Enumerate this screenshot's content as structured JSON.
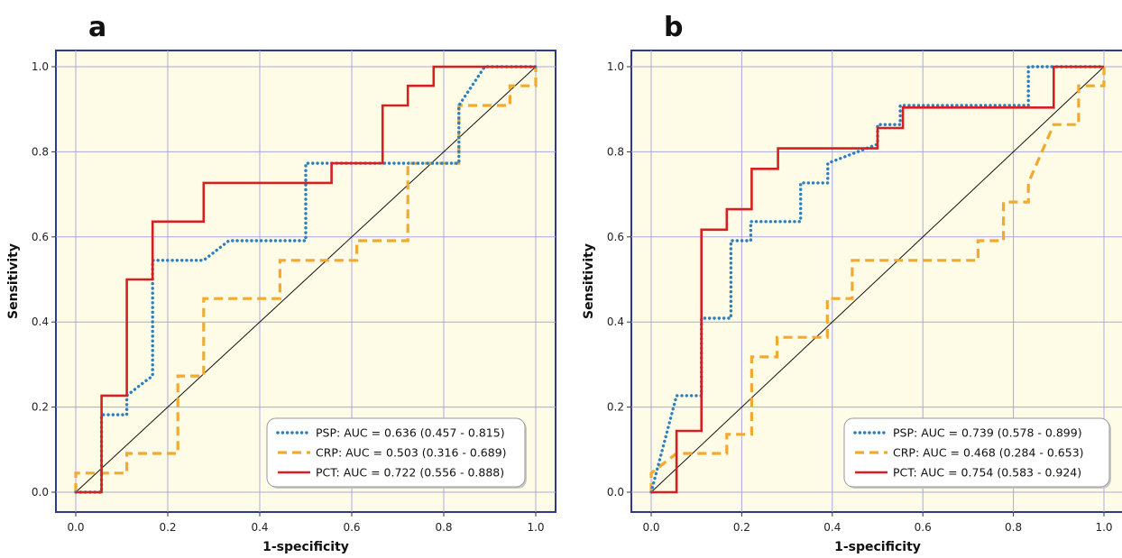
{
  "chart_data": [
    {
      "type": "line",
      "panel_label": "a",
      "xlabel": "1-specificity",
      "ylabel": "Sensitivity",
      "xlim": [
        0,
        1
      ],
      "ylim": [
        0,
        1
      ],
      "x_ticks": [
        "0.0",
        "0.2",
        "0.4",
        "0.6",
        "0.8",
        "1.0"
      ],
      "y_ticks": [
        "0.0",
        "0.2",
        "0.4",
        "0.6",
        "0.8",
        "1.0"
      ],
      "grid": true,
      "legend_position": "bottom-right",
      "reference_line": true,
      "series": [
        {
          "name": "PSP",
          "legend": "PSP: AUC = 0.636 (0.457 - 0.815)",
          "color": "#2a7fc1",
          "style": "dotted",
          "points": [
            [
              0,
              0
            ],
            [
              0.056,
              0
            ],
            [
              0.056,
              0.182
            ],
            [
              0.111,
              0.182
            ],
            [
              0.111,
              0.227
            ],
            [
              0.15,
              0.26
            ],
            [
              0.167,
              0.273
            ],
            [
              0.167,
              0.545
            ],
            [
              0.278,
              0.545
            ],
            [
              0.333,
              0.591
            ],
            [
              0.5,
              0.591
            ],
            [
              0.5,
              0.773
            ],
            [
              0.833,
              0.773
            ],
            [
              0.833,
              0.909
            ],
            [
              0.889,
              1.0
            ],
            [
              1.0,
              1.0
            ]
          ]
        },
        {
          "name": "CRP",
          "legend": "CRP: AUC = 0.503 (0.316 - 0.689)",
          "color": "#f2a930",
          "style": "dashed",
          "points": [
            [
              0,
              0
            ],
            [
              0,
              0.045
            ],
            [
              0.111,
              0.045
            ],
            [
              0.111,
              0.091
            ],
            [
              0.222,
              0.091
            ],
            [
              0.222,
              0.273
            ],
            [
              0.278,
              0.273
            ],
            [
              0.278,
              0.455
            ],
            [
              0.444,
              0.455
            ],
            [
              0.444,
              0.545
            ],
            [
              0.611,
              0.545
            ],
            [
              0.611,
              0.591
            ],
            [
              0.722,
              0.591
            ],
            [
              0.722,
              0.773
            ],
            [
              0.833,
              0.773
            ],
            [
              0.833,
              0.909
            ],
            [
              0.944,
              0.909
            ],
            [
              0.944,
              0.955
            ],
            [
              1.0,
              0.955
            ],
            [
              1.0,
              1.0
            ]
          ]
        },
        {
          "name": "PCT",
          "legend": "PCT: AUC = 0.722 (0.556 - 0.888)",
          "color": "#d42020",
          "style": "solid",
          "points": [
            [
              0,
              0
            ],
            [
              0.056,
              0
            ],
            [
              0.056,
              0.227
            ],
            [
              0.111,
              0.227
            ],
            [
              0.111,
              0.5
            ],
            [
              0.167,
              0.5
            ],
            [
              0.167,
              0.636
            ],
            [
              0.278,
              0.636
            ],
            [
              0.278,
              0.727
            ],
            [
              0.556,
              0.727
            ],
            [
              0.556,
              0.773
            ],
            [
              0.667,
              0.773
            ],
            [
              0.667,
              0.909
            ],
            [
              0.722,
              0.909
            ],
            [
              0.722,
              0.955
            ],
            [
              0.778,
              0.955
            ],
            [
              0.778,
              1.0
            ],
            [
              1.0,
              1.0
            ]
          ]
        }
      ]
    },
    {
      "type": "line",
      "panel_label": "b",
      "xlabel": "1-specificity",
      "ylabel": "Sensitivity",
      "xlim": [
        0,
        1
      ],
      "ylim": [
        0,
        1
      ],
      "x_ticks": [
        "0.0",
        "0.2",
        "0.4",
        "0.6",
        "0.8",
        "1.0"
      ],
      "y_ticks": [
        "0.0",
        "0.2",
        "0.4",
        "0.6",
        "0.8",
        "1.0"
      ],
      "grid": true,
      "legend_position": "bottom-right",
      "reference_line": true,
      "series": [
        {
          "name": "PSP",
          "legend": "PSP: AUC = 0.739 (0.578 - 0.899)",
          "color": "#2a7fc1",
          "style": "dotted",
          "points": [
            [
              0,
              0
            ],
            [
              0.056,
              0.227
            ],
            [
              0.111,
              0.227
            ],
            [
              0.111,
              0.409
            ],
            [
              0.176,
              0.409
            ],
            [
              0.176,
              0.591
            ],
            [
              0.22,
              0.591
            ],
            [
              0.22,
              0.636
            ],
            [
              0.33,
              0.636
            ],
            [
              0.33,
              0.727
            ],
            [
              0.39,
              0.727
            ],
            [
              0.39,
              0.773
            ],
            [
              0.5,
              0.818
            ],
            [
              0.5,
              0.864
            ],
            [
              0.55,
              0.864
            ],
            [
              0.55,
              0.909
            ],
            [
              0.833,
              0.909
            ],
            [
              0.833,
              1.0
            ],
            [
              1.0,
              1.0
            ]
          ]
        },
        {
          "name": "CRP",
          "legend": "CRP: AUC = 0.468 (0.284 - 0.653)",
          "color": "#f2a930",
          "style": "dashed",
          "points": [
            [
              0,
              0
            ],
            [
              0,
              0.045
            ],
            [
              0.056,
              0.091
            ],
            [
              0.167,
              0.091
            ],
            [
              0.167,
              0.136
            ],
            [
              0.222,
              0.136
            ],
            [
              0.222,
              0.318
            ],
            [
              0.278,
              0.318
            ],
            [
              0.278,
              0.364
            ],
            [
              0.389,
              0.364
            ],
            [
              0.389,
              0.455
            ],
            [
              0.444,
              0.455
            ],
            [
              0.444,
              0.545
            ],
            [
              0.722,
              0.545
            ],
            [
              0.722,
              0.591
            ],
            [
              0.778,
              0.591
            ],
            [
              0.778,
              0.682
            ],
            [
              0.833,
              0.682
            ],
            [
              0.833,
              0.727
            ],
            [
              0.889,
              0.864
            ],
            [
              0.944,
              0.864
            ],
            [
              0.944,
              0.955
            ],
            [
              1.0,
              0.955
            ],
            [
              1.0,
              1.0
            ]
          ]
        },
        {
          "name": "PCT",
          "legend": "PCT: AUC = 0.754 (0.583 - 0.924)",
          "color": "#d42020",
          "style": "solid",
          "points": [
            [
              0,
              0
            ],
            [
              0.056,
              0
            ],
            [
              0.056,
              0.144
            ],
            [
              0.111,
              0.144
            ],
            [
              0.111,
              0.617
            ],
            [
              0.167,
              0.617
            ],
            [
              0.167,
              0.665
            ],
            [
              0.222,
              0.665
            ],
            [
              0.222,
              0.76
            ],
            [
              0.28,
              0.76
            ],
            [
              0.28,
              0.808
            ],
            [
              0.5,
              0.808
            ],
            [
              0.5,
              0.856
            ],
            [
              0.556,
              0.856
            ],
            [
              0.556,
              0.904
            ],
            [
              0.889,
              0.904
            ],
            [
              0.889,
              1.0
            ],
            [
              1.0,
              1.0
            ]
          ]
        }
      ]
    }
  ]
}
